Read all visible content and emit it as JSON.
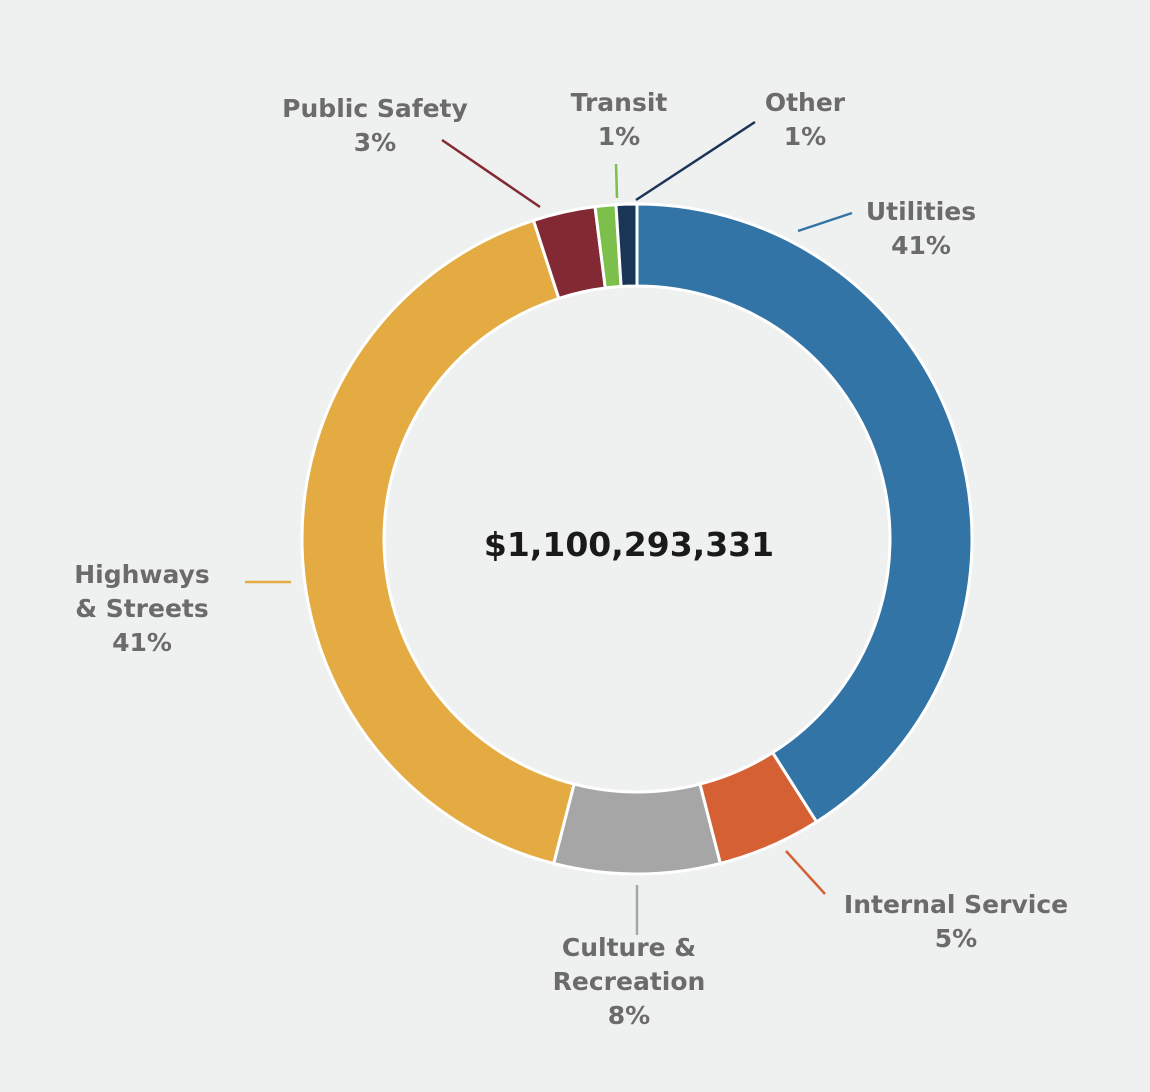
{
  "chart_data": {
    "type": "pie",
    "center_label": "$1,100,293,331",
    "slices": [
      {
        "name": "Utilities",
        "label_lines": [
          "Utilities"
        ],
        "percent_label": "41%",
        "value": 41,
        "color": "#3274a6"
      },
      {
        "name": "Internal Service",
        "label_lines": [
          "Internal Service"
        ],
        "percent_label": "5%",
        "value": 5,
        "color": "#d46034"
      },
      {
        "name": "Culture & Recreation",
        "label_lines": [
          "Culture &",
          "Recreation"
        ],
        "percent_label": "8%",
        "value": 8,
        "color": "#a6a6a6"
      },
      {
        "name": "Highways & Streets",
        "label_lines": [
          "Highways",
          "& Streets"
        ],
        "percent_label": "41%",
        "value": 41,
        "color": "#e3ab41"
      },
      {
        "name": "Public Safety",
        "label_lines": [
          "Public Safety"
        ],
        "percent_label": "3%",
        "value": 3,
        "color": "#832933"
      },
      {
        "name": "Transit",
        "label_lines": [
          "Transit"
        ],
        "percent_label": "1%",
        "value": 1,
        "color": "#7cbf4b"
      },
      {
        "name": "Other",
        "label_lines": [
          "Other"
        ],
        "percent_label": "1%",
        "value": 1,
        "color": "#1b3557"
      }
    ]
  }
}
